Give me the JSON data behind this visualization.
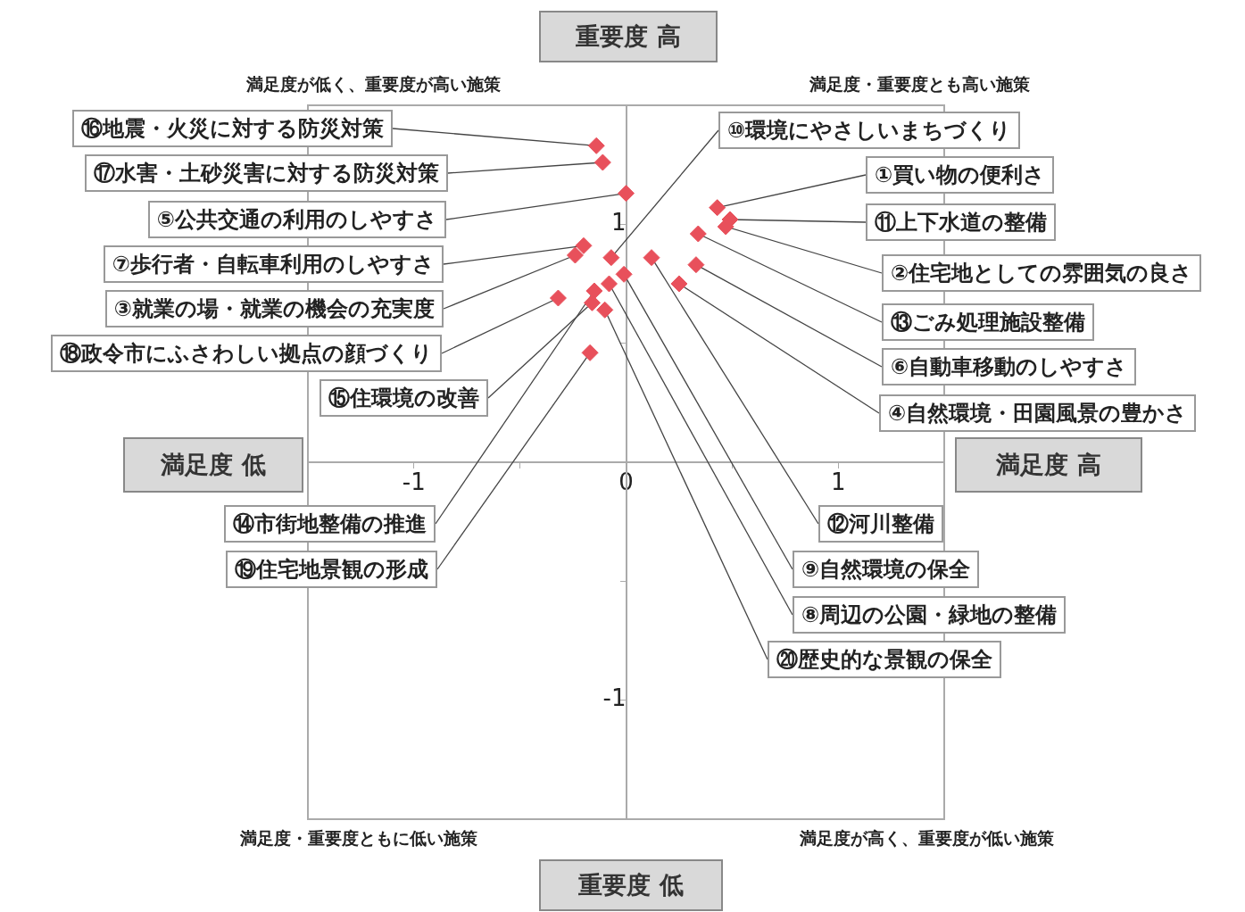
{
  "chart_data": {
    "type": "scatter",
    "color": "#e8505b",
    "marker": "diamond",
    "grid": false,
    "legend": false,
    "x": [
      0.43,
      0.47,
      -0.24,
      0.25,
      0.0,
      0.33,
      -0.2,
      -0.08,
      -0.01,
      -0.07,
      0.49,
      0.12,
      0.34,
      -0.15,
      -0.16,
      -0.14,
      -0.11,
      -0.32,
      -0.17,
      -0.1
    ],
    "values": [
      1.07,
      0.99,
      0.87,
      0.75,
      1.13,
      0.83,
      0.91,
      0.75,
      0.79,
      0.86,
      1.02,
      0.86,
      0.96,
      0.72,
      0.67,
      1.33,
      1.26,
      0.69,
      0.46,
      0.64
    ],
    "xlim": [
      -1.5,
      1.5
    ],
    "ylim": [
      -1.5,
      1.5
    ],
    "xticks": [
      -1,
      {
        "value": -0.5,
        "label": null
      },
      0,
      {
        "value": 0.5,
        "label": null
      },
      1
    ],
    "yticks": [
      -1,
      {
        "value": -0.5,
        "label": null
      },
      {
        "value": 0,
        "label": null
      },
      {
        "value": 0.5,
        "label": null
      },
      1
    ],
    "annotations": [
      {
        "text": "①買い物の便利さ",
        "x": 0.43,
        "y": 1.07
      },
      {
        "text": "②住宅地としての雰囲気の良さ",
        "x": 0.47,
        "y": 0.99
      },
      {
        "text": "③就業の場・就業の機会の充実度",
        "x": -0.24,
        "y": 0.87
      },
      {
        "text": "④自然環境・田園風景の豊かさ",
        "x": 0.25,
        "y": 0.75
      },
      {
        "text": "⑤公共交通の利用のしやすさ",
        "x": 0.0,
        "y": 1.13
      },
      {
        "text": "⑥自動車移動のしやすさ",
        "x": 0.33,
        "y": 0.83
      },
      {
        "text": "⑦歩行者・自転車利用のしやすさ",
        "x": -0.2,
        "y": 0.91
      },
      {
        "text": "⑧周辺の公園・緑地の整備",
        "x": -0.08,
        "y": 0.75
      },
      {
        "text": "⑨自然環境の保全",
        "x": -0.01,
        "y": 0.79
      },
      {
        "text": "⑩環境にやさしいまちづくり",
        "x": -0.07,
        "y": 0.86
      },
      {
        "text": "⑪上下水道の整備",
        "x": 0.49,
        "y": 1.02
      },
      {
        "text": "⑫河川整備",
        "x": 0.12,
        "y": 0.86
      },
      {
        "text": "⑬ごみ処理施設整備",
        "x": 0.34,
        "y": 0.96
      },
      {
        "text": "⑭市街地整備の推進",
        "x": -0.15,
        "y": 0.72
      },
      {
        "text": "⑮住環境の改善",
        "x": -0.16,
        "y": 0.67
      },
      {
        "text": "⑯地震・火災に対する防災対策",
        "x": -0.14,
        "y": 1.33
      },
      {
        "text": "⑰水害・土砂災害に対する防災対策",
        "x": -0.11,
        "y": 1.26
      },
      {
        "text": "⑱政令市にふさわしい拠点の顔づくり",
        "x": -0.32,
        "y": 0.69
      },
      {
        "text": "⑲住宅地景観の形成",
        "x": -0.17,
        "y": 0.46
      },
      {
        "text": "⑳歴史的な景観の保全",
        "x": -0.1,
        "y": 0.64
      },
      "満足度が低く、重要度が高い施策",
      "満足度・重要度とも高い施策",
      "満足度・重要度ともに低い施策",
      "満足度が高く、重要度が低い施策",
      "重要度 高",
      "重要度 低",
      "満足度 低",
      "満足度 高"
    ]
  }
}
